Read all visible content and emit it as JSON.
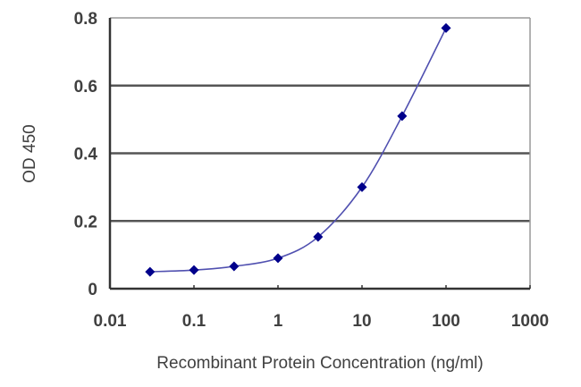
{
  "chart_data": {
    "type": "line",
    "title": "",
    "xlabel": "Recombinant Protein Concentration (ng/ml)",
    "ylabel": "OD 450",
    "xscale": "log",
    "xlim": [
      0.01,
      1000
    ],
    "ylim": [
      0,
      0.8
    ],
    "x_ticks": [
      "0.01",
      "0.1",
      "1",
      "10",
      "100",
      "1000"
    ],
    "y_ticks": [
      "0",
      "0.2",
      "0.4",
      "0.6",
      "0.8"
    ],
    "grid": {
      "horizontal": true,
      "vertical": false
    },
    "legend": null,
    "series": [
      {
        "name": "OD 450",
        "color": "#00008B",
        "line_color": "#5050B0",
        "marker": "diamond",
        "x": [
          0.03,
          0.1,
          0.3,
          1,
          3,
          10,
          30,
          100
        ],
        "values": [
          0.05,
          0.055,
          0.066,
          0.09,
          0.153,
          0.3,
          0.51,
          0.77
        ]
      }
    ]
  },
  "colors": {
    "grid": "#555555",
    "axis": "#333333",
    "frame": "#999999",
    "marker": "#00008B",
    "curve": "#5050B0"
  }
}
